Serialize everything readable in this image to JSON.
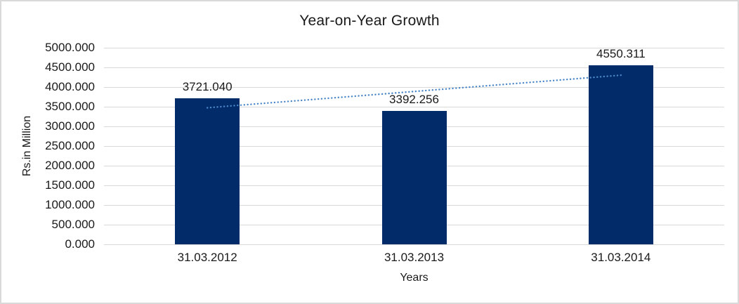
{
  "chart_data": {
    "type": "bar",
    "title": "Year-on-Year Growth",
    "xlabel": "Years",
    "ylabel": "Rs.in Million",
    "categories": [
      "31.03.2012",
      "31.03.2013",
      "31.03.2014"
    ],
    "values": [
      3721.04,
      3392.256,
      4550.311
    ],
    "data_labels": [
      "3721.040",
      "3392.256",
      "4550.311"
    ],
    "y_ticks": [
      "5000.000",
      "4500.000",
      "4000.000",
      "3500.000",
      "3000.000",
      "2500.000",
      "2000.000",
      "1500.000",
      "1000.000",
      "500.000",
      "0.000"
    ],
    "ylim": [
      0,
      5000
    ],
    "y_step": 500,
    "grid": true,
    "legend_position": "none",
    "bar_color": "#022b69",
    "gridline_color": "#d9d9d9",
    "frame_color": "#d9d9d9",
    "text_color": "#1a1a1a",
    "trendline": {
      "type": "linear",
      "style": "dotted",
      "color": "#4a86c8"
    }
  }
}
